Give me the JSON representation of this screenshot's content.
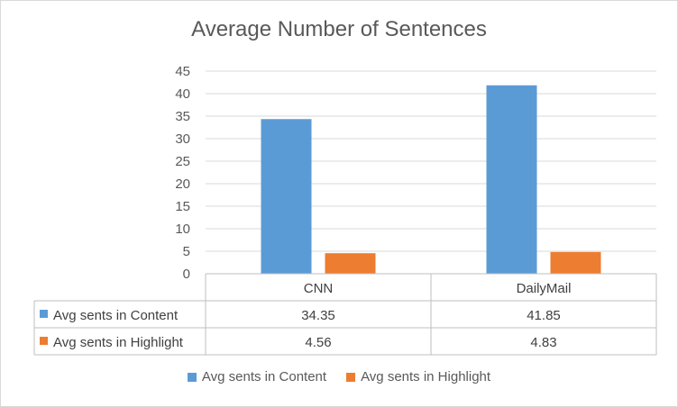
{
  "chart_data": {
    "type": "bar",
    "title": "Average Number of Sentences",
    "categories": [
      "CNN",
      "DailyMail"
    ],
    "series": [
      {
        "name": "Avg sents in Content",
        "values": [
          34.35,
          41.85
        ],
        "labels": [
          "34.35",
          "41.85"
        ],
        "color": "#5b9bd5"
      },
      {
        "name": "Avg sents in Highlight",
        "values": [
          4.56,
          4.83
        ],
        "labels": [
          "4.56",
          "4.83"
        ],
        "color": "#ed7d31"
      }
    ],
    "ylim": [
      0,
      45
    ],
    "yticks": [
      0,
      5,
      10,
      15,
      20,
      25,
      30,
      35,
      40,
      45
    ],
    "grid": true,
    "legend_position": "bottom",
    "data_table": true
  }
}
